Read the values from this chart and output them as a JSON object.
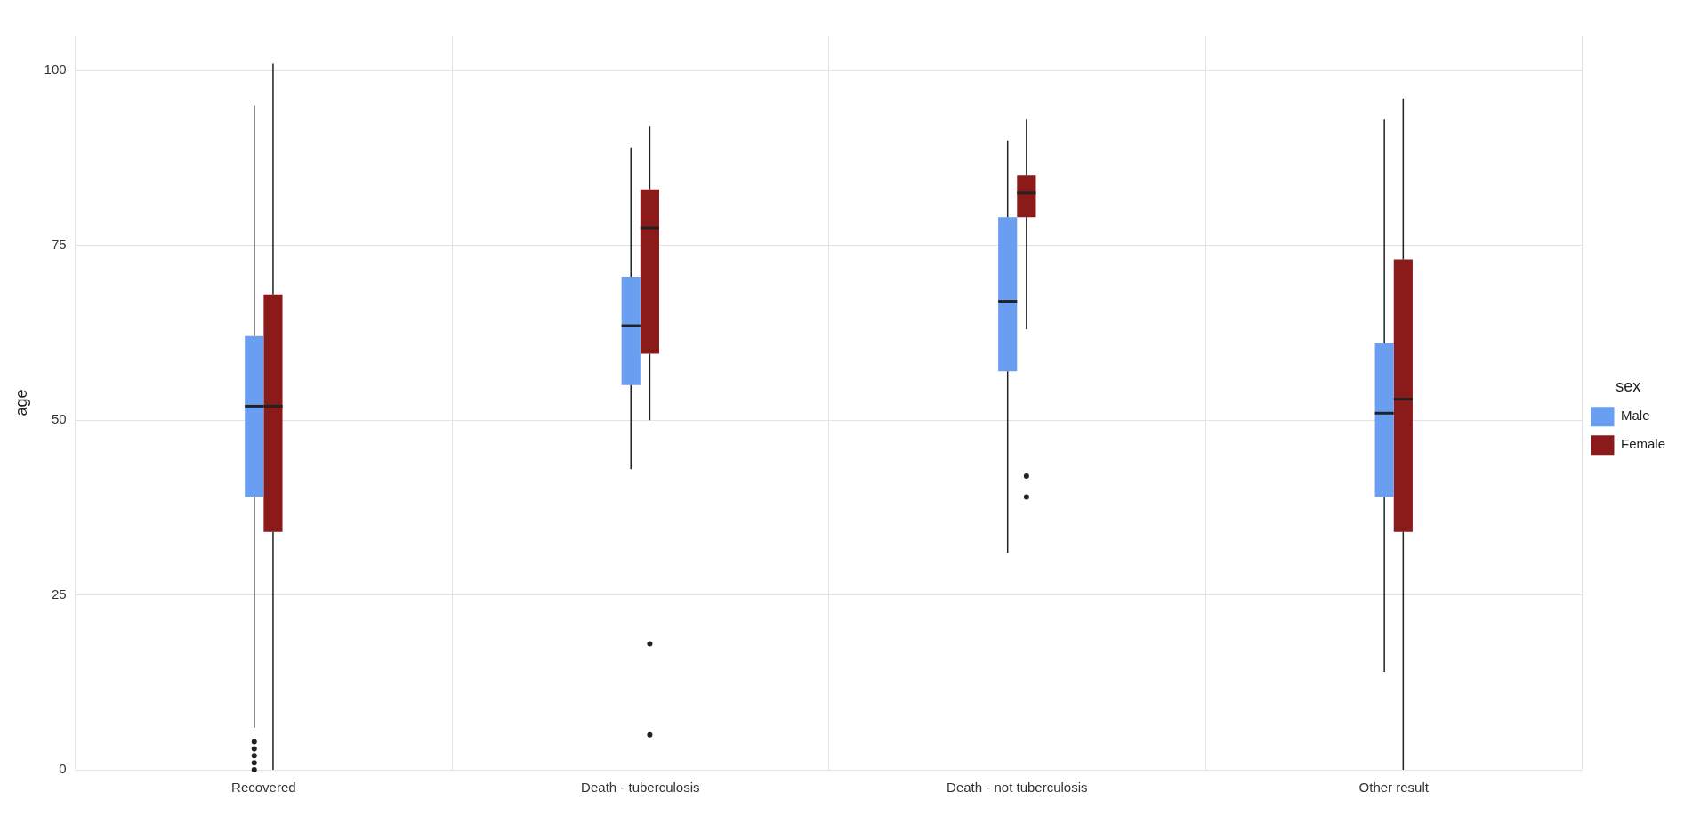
{
  "chart_data": {
    "type": "box",
    "ylabel": "age",
    "legend_title": "sex",
    "legend": "right",
    "grid": true,
    "categories": [
      "Recovered",
      "Death - tuberculosis",
      "Death - not tuberculosis",
      "Other result"
    ],
    "ylim": [
      0,
      105
    ],
    "yticks": [
      0,
      25,
      50,
      75,
      100
    ],
    "series": [
      {
        "name": "Male",
        "color": "#6a9ef0",
        "boxes": [
          {
            "low": 6,
            "q1": 39,
            "median": 52,
            "q3": 62,
            "high": 95,
            "outliers": [
              0,
              1,
              2,
              3,
              4
            ]
          },
          {
            "low": 43,
            "q1": 55,
            "median": 63.5,
            "q3": 70.5,
            "high": 89
          },
          {
            "low": 31,
            "q1": 57,
            "median": 67,
            "q3": 79,
            "high": 90
          },
          {
            "low": 14,
            "q1": 39,
            "median": 51,
            "q3": 61,
            "high": 93
          }
        ]
      },
      {
        "name": "Female",
        "color": "#8b1a1a",
        "boxes": [
          {
            "low": 0,
            "q1": 34,
            "median": 52,
            "q3": 68,
            "high": 101
          },
          {
            "low": 50,
            "q1": 59.5,
            "median": 77.5,
            "q3": 83,
            "high": 92,
            "outliers": [
              18,
              5
            ]
          },
          {
            "low": 63,
            "q1": 79,
            "median": 82.5,
            "q3": 85,
            "high": 93,
            "outliers": [
              42,
              39
            ]
          },
          {
            "low": 0,
            "q1": 34,
            "median": 53,
            "q3": 73,
            "high": 96
          }
        ]
      }
    ]
  }
}
